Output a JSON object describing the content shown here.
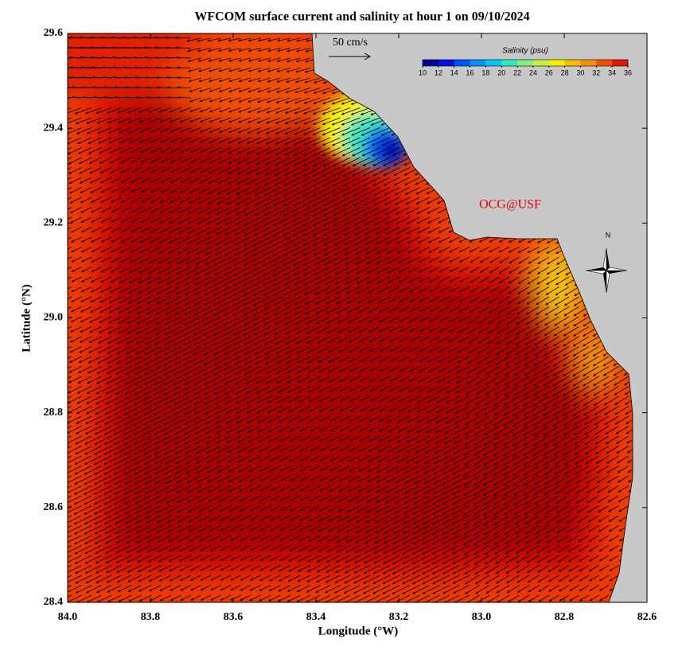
{
  "chart_data": {
    "type": "map",
    "title": "WFCOM surface current and salinity at hour 1 on 09/10/2024",
    "x_label": "Longitude (°W)",
    "y_label": "Latitude (°N)",
    "scale_label": "50 cm/s",
    "watermark": "OCG@USF",
    "compass_label": "N",
    "xlim": [
      84.0,
      82.6
    ],
    "xticks": [
      {
        "value": 84.0,
        "label": "84.0"
      },
      83.8,
      83.6,
      83.4,
      83.2,
      {
        "value": 83.0,
        "label": "83.0"
      },
      82.8,
      82.6
    ],
    "ylim": [
      28.4,
      29.6
    ],
    "yticks": [
      28.4,
      28.6,
      28.8,
      {
        "value": 29.0,
        "label": "29.0"
      },
      29.2,
      29.4,
      29.6
    ],
    "colorbar": {
      "label": "Salinity (psu)",
      "lim": [
        10,
        36
      ],
      "ticks": [
        10,
        12,
        14,
        16,
        18,
        20,
        22,
        24,
        26,
        28,
        30,
        32,
        34,
        36
      ],
      "colors": [
        "#0000a0",
        "#0010e0",
        "#0050ff",
        "#0090ff",
        "#00c8f0",
        "#30e8c0",
        "#80f080",
        "#c8f040",
        "#f8f000",
        "#f8c000",
        "#f89000",
        "#f05000",
        "#e01800"
      ]
    }
  }
}
